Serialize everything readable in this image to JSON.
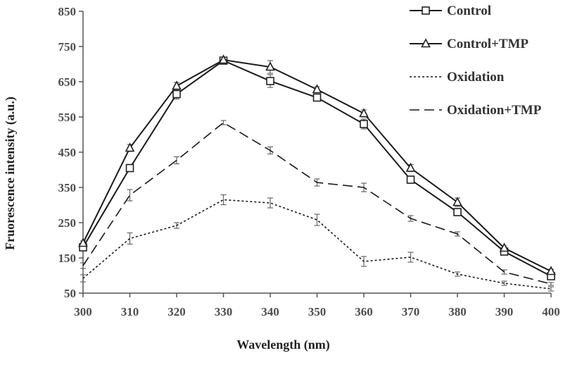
{
  "chart_data": {
    "type": "line",
    "xlabel": "Wavelength (nm)",
    "ylabel": "Fruorescence intensity (a.u.)",
    "xlim": [
      300,
      400
    ],
    "ylim": [
      50,
      850
    ],
    "x": [
      300,
      310,
      320,
      330,
      340,
      350,
      360,
      370,
      380,
      390,
      400
    ],
    "xticks": [
      "300",
      "310",
      "320",
      "330",
      "340",
      "350",
      "360",
      "370",
      "380",
      "390",
      "400"
    ],
    "yticks": [
      "50",
      "150",
      "250",
      "350",
      "450",
      "550",
      "650",
      "750",
      "850"
    ],
    "grid": false,
    "legend_position": "top-right",
    "series": [
      {
        "name": "Control",
        "marker": "square",
        "dash": "solid",
        "values": [
          180,
          405,
          615,
          710,
          652,
          605,
          530,
          372,
          280,
          168,
          98
        ],
        "errors": [
          8,
          10,
          14,
          10,
          18,
          10,
          14,
          10,
          10,
          8,
          6
        ]
      },
      {
        "name": "Control+TMP",
        "marker": "triangle",
        "dash": "solid",
        "values": [
          192,
          462,
          638,
          712,
          692,
          628,
          560,
          405,
          308,
          178,
          112
        ],
        "errors": [
          6,
          10,
          10,
          8,
          18,
          8,
          10,
          10,
          12,
          6,
          6
        ]
      },
      {
        "name": "Oxidation",
        "marker": "none",
        "dash": "dotted",
        "values": [
          92,
          205,
          242,
          315,
          306,
          258,
          140,
          152,
          104,
          78,
          62
        ],
        "errors": [
          10,
          16,
          8,
          14,
          14,
          16,
          14,
          14,
          6,
          6,
          6
        ]
      },
      {
        "name": "Oxidation+TMP",
        "marker": "none",
        "dash": "dashed",
        "values": [
          128,
          328,
          427,
          534,
          455,
          364,
          350,
          262,
          218,
          110,
          76
        ],
        "errors": [
          8,
          16,
          10,
          6,
          10,
          10,
          12,
          8,
          6,
          6,
          4
        ]
      }
    ]
  }
}
